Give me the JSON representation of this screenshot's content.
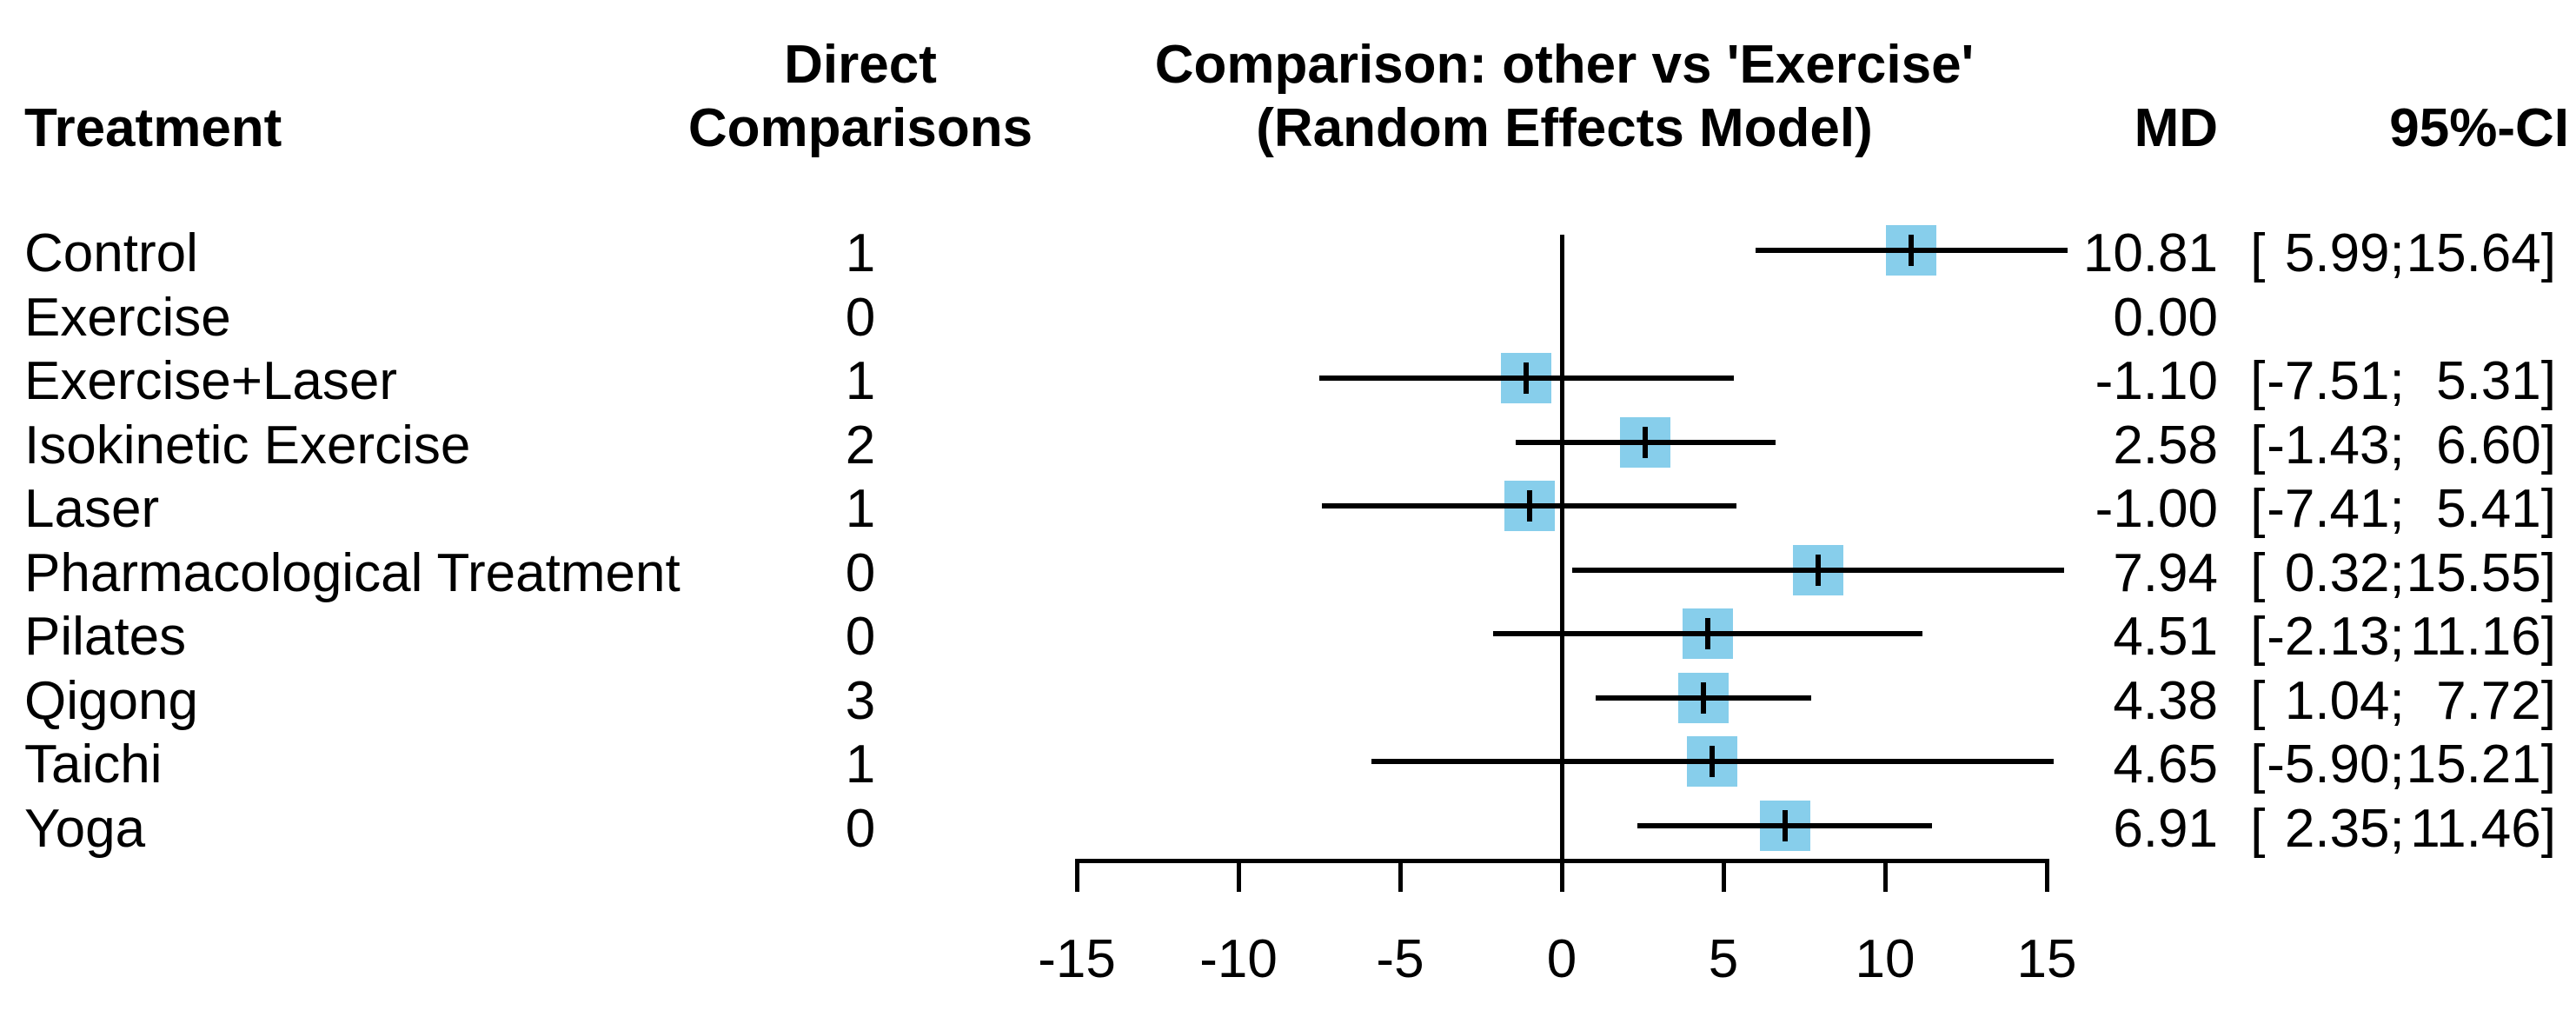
{
  "header": {
    "treatment": "Treatment",
    "direct_line1": "Direct",
    "direct_line2": "Comparisons",
    "comparison_line1": "Comparison: other vs 'Exercise'",
    "comparison_line2": "(Random Effects Model)",
    "md": "MD",
    "ci": "95%-CI"
  },
  "colors": {
    "square": "#87CEEB",
    "line": "#000000",
    "text": "#000000",
    "background": "#FFFFFF"
  },
  "chart_data": {
    "type": "forest",
    "title": "Comparison: other vs 'Exercise' (Random Effects Model)",
    "effect_measure": "MD",
    "reference_treatment": "Exercise",
    "xlim": [
      -15,
      15
    ],
    "x_ticks": [
      -15,
      -10,
      -5,
      0,
      5,
      10,
      15
    ],
    "rows": [
      {
        "treatment": "Control",
        "direct_comparisons": 1,
        "md": 10.81,
        "md_text": "10.81",
        "ci_low": 5.99,
        "ci_high": 15.64,
        "ci_low_text": "5.99",
        "ci_high_text": "15.64"
      },
      {
        "treatment": "Exercise",
        "direct_comparisons": 0,
        "md": 0.0,
        "md_text": "0.00",
        "ci_low": null,
        "ci_high": null,
        "ci_low_text": "",
        "ci_high_text": ""
      },
      {
        "treatment": "Exercise+Laser",
        "direct_comparisons": 1,
        "md": -1.1,
        "md_text": "-1.10",
        "ci_low": -7.51,
        "ci_high": 5.31,
        "ci_low_text": "-7.51",
        "ci_high_text": "5.31"
      },
      {
        "treatment": "Isokinetic Exercise",
        "direct_comparisons": 2,
        "md": 2.58,
        "md_text": "2.58",
        "ci_low": -1.43,
        "ci_high": 6.6,
        "ci_low_text": "-1.43",
        "ci_high_text": "6.60"
      },
      {
        "treatment": "Laser",
        "direct_comparisons": 1,
        "md": -1.0,
        "md_text": "-1.00",
        "ci_low": -7.41,
        "ci_high": 5.41,
        "ci_low_text": "-7.41",
        "ci_high_text": "5.41"
      },
      {
        "treatment": "Pharmacological Treatment",
        "direct_comparisons": 0,
        "md": 7.94,
        "md_text": "7.94",
        "ci_low": 0.32,
        "ci_high": 15.55,
        "ci_low_text": "0.32",
        "ci_high_text": "15.55"
      },
      {
        "treatment": "Pilates",
        "direct_comparisons": 0,
        "md": 4.51,
        "md_text": "4.51",
        "ci_low": -2.13,
        "ci_high": 11.16,
        "ci_low_text": "-2.13",
        "ci_high_text": "11.16"
      },
      {
        "treatment": "Qigong",
        "direct_comparisons": 3,
        "md": 4.38,
        "md_text": "4.38",
        "ci_low": 1.04,
        "ci_high": 7.72,
        "ci_low_text": "1.04",
        "ci_high_text": "7.72"
      },
      {
        "treatment": "Taichi",
        "direct_comparisons": 1,
        "md": 4.65,
        "md_text": "4.65",
        "ci_low": -5.9,
        "ci_high": 15.21,
        "ci_low_text": "-5.90",
        "ci_high_text": "15.21"
      },
      {
        "treatment": "Yoga",
        "direct_comparisons": 0,
        "md": 6.91,
        "md_text": "6.91",
        "ci_low": 2.35,
        "ci_high": 11.46,
        "ci_low_text": "2.35",
        "ci_high_text": "11.46"
      }
    ]
  }
}
